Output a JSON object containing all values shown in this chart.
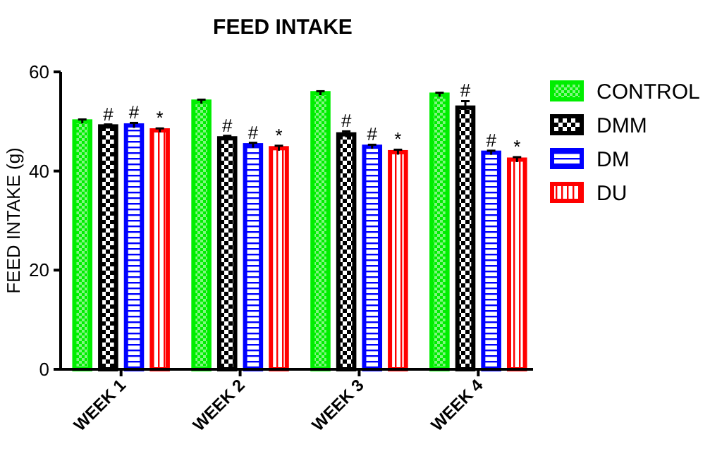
{
  "chart_data": {
    "type": "bar",
    "title": "FEED INTAKE",
    "ylabel": "FEED INTAKE (g)",
    "categories": [
      "WEEK 1",
      "WEEK 2",
      "WEEK 3",
      "WEEK 4"
    ],
    "series": [
      {
        "name": "CONTROL",
        "color": "#00ee00",
        "values": [
          50.0,
          54.0,
          55.7,
          55.4
        ],
        "errors": [
          0.4,
          0.4,
          0.4,
          0.4
        ]
      },
      {
        "name": "DMM",
        "color": "#000000",
        "values": [
          49.0,
          46.6,
          47.4,
          52.8
        ],
        "errors": [
          0.4,
          0.5,
          0.6,
          1.3
        ]
      },
      {
        "name": "DM",
        "color": "#0000ff",
        "values": [
          49.2,
          45.2,
          44.9,
          43.7
        ],
        "errors": [
          0.5,
          0.5,
          0.4,
          0.4
        ]
      },
      {
        "name": "DU",
        "color": "#ff0000",
        "values": [
          48.2,
          44.6,
          43.8,
          42.3
        ],
        "errors": [
          0.4,
          0.5,
          0.5,
          0.5
        ]
      }
    ],
    "ylim": [
      0,
      60
    ],
    "yticks": [
      0,
      20,
      40,
      60
    ],
    "legend": "right",
    "annotations": [
      {
        "text": "#",
        "x": "WEEK 1",
        "y": 49.0
      },
      {
        "text": "#",
        "x": "WEEK 1",
        "y": 49.2
      },
      {
        "text": "*",
        "x": "WEEK 1",
        "y": 48.2
      },
      {
        "text": "#",
        "x": "WEEK 2",
        "y": 46.6
      },
      {
        "text": "#",
        "x": "WEEK 2",
        "y": 45.2
      },
      {
        "text": "*",
        "x": "WEEK 2",
        "y": 44.6
      },
      {
        "text": "#",
        "x": "WEEK 3",
        "y": 47.4
      },
      {
        "text": "#",
        "x": "WEEK 3",
        "y": 44.9
      },
      {
        "text": "*",
        "x": "WEEK 3",
        "y": 43.8
      },
      {
        "text": "#",
        "x": "WEEK 4",
        "y": 52.8
      },
      {
        "text": "#",
        "x": "WEEK 4",
        "y": 43.7
      },
      {
        "text": "*",
        "x": "WEEK 4",
        "y": 42.3
      }
    ]
  }
}
